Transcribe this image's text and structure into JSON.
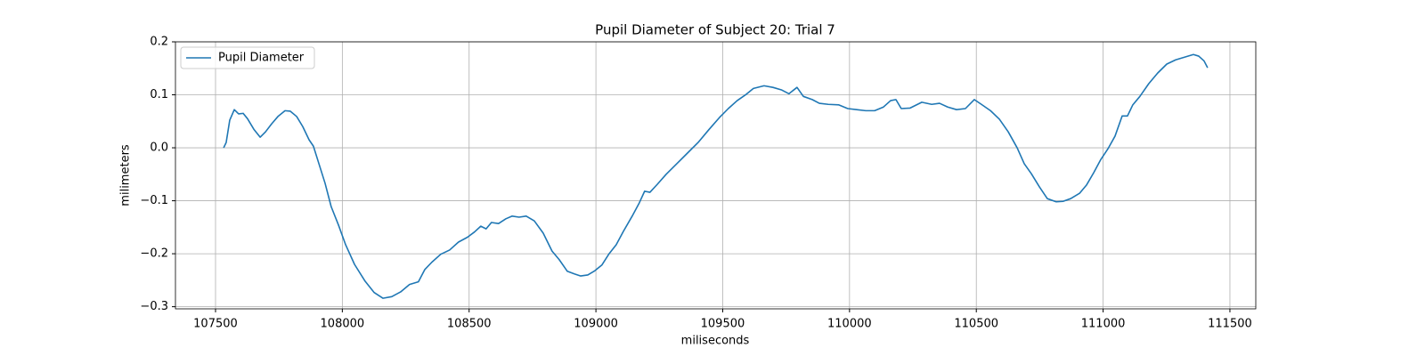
{
  "chart_data": {
    "type": "line",
    "title": "Pupil Diameter of Subject 20: Trial 7",
    "xlabel": "miliseconds",
    "ylabel": "milimeters",
    "x": [
      107532,
      107542,
      107556,
      107574,
      107591,
      107609,
      107626,
      107651,
      107676,
      107697,
      107721,
      107746,
      107774,
      107795,
      107820,
      107844,
      107869,
      107886,
      107907,
      107932,
      107956,
      107985,
      108013,
      108048,
      108090,
      108125,
      108160,
      108195,
      108230,
      108265,
      108300,
      108325,
      108353,
      108388,
      108423,
      108458,
      108493,
      108521,
      108546,
      108567,
      108588,
      108616,
      108645,
      108669,
      108697,
      108725,
      108757,
      108792,
      108827,
      108855,
      108887,
      108915,
      108940,
      108968,
      108996,
      109024,
      109052,
      109080,
      109108,
      109143,
      109171,
      109192,
      109213,
      109242,
      109277,
      109319,
      109361,
      109403,
      109445,
      109487,
      109522,
      109557,
      109593,
      109621,
      109663,
      109698,
      109733,
      109761,
      109793,
      109818,
      109853,
      109881,
      109916,
      109958,
      109993,
      110028,
      110064,
      110099,
      110134,
      110162,
      110183,
      110204,
      110239,
      110285,
      110324,
      110355,
      110387,
      110422,
      110457,
      110492,
      110520,
      110556,
      110591,
      110626,
      110661,
      110689,
      110717,
      110749,
      110780,
      110815,
      110843,
      110872,
      110907,
      110935,
      110963,
      110991,
      111019,
      111047,
      111075,
      111096,
      111117,
      111145,
      111180,
      111215,
      111251,
      111286,
      111321,
      111356,
      111377,
      111398,
      111412
    ],
    "series": [
      {
        "name": "Pupil Diameter",
        "color": "#1f77b4",
        "values": [
          0.0,
          0.01,
          0.052,
          0.072,
          0.064,
          0.065,
          0.055,
          0.035,
          0.02,
          0.03,
          0.045,
          0.059,
          0.07,
          0.069,
          0.059,
          0.04,
          0.015,
          0.003,
          -0.029,
          -0.067,
          -0.111,
          -0.146,
          -0.183,
          -0.22,
          -0.252,
          -0.273,
          -0.284,
          -0.281,
          -0.272,
          -0.258,
          -0.253,
          -0.23,
          -0.216,
          -0.201,
          -0.193,
          -0.178,
          -0.169,
          -0.159,
          -0.148,
          -0.153,
          -0.141,
          -0.143,
          -0.134,
          -0.129,
          -0.131,
          -0.129,
          -0.138,
          -0.161,
          -0.195,
          -0.211,
          -0.233,
          -0.238,
          -0.242,
          -0.24,
          -0.232,
          -0.221,
          -0.2,
          -0.183,
          -0.158,
          -0.129,
          -0.104,
          -0.082,
          -0.084,
          -0.069,
          -0.05,
          -0.03,
          -0.01,
          0.01,
          0.034,
          0.057,
          0.074,
          0.089,
          0.101,
          0.112,
          0.117,
          0.114,
          0.109,
          0.102,
          0.114,
          0.097,
          0.091,
          0.084,
          0.082,
          0.081,
          0.074,
          0.072,
          0.07,
          0.07,
          0.077,
          0.089,
          0.091,
          0.074,
          0.075,
          0.086,
          0.082,
          0.084,
          0.077,
          0.072,
          0.074,
          0.091,
          0.082,
          0.07,
          0.054,
          0.03,
          0.0,
          -0.03,
          -0.049,
          -0.074,
          -0.096,
          -0.102,
          -0.101,
          -0.096,
          -0.086,
          -0.07,
          -0.047,
          -0.022,
          -0.002,
          0.022,
          0.06,
          0.06,
          0.081,
          0.097,
          0.121,
          0.141,
          0.158,
          0.166,
          0.171,
          0.176,
          0.173,
          0.164,
          0.151
        ]
      }
    ],
    "xlim": [
      107342,
      111602
    ],
    "xticks": [
      107500,
      108000,
      108500,
      109000,
      109500,
      110000,
      110500,
      111000,
      111500
    ],
    "ylim": [
      -0.304,
      0.2
    ],
    "yticks": [
      {
        "value": -0.3,
        "label": "−0.3"
      },
      {
        "value": -0.2,
        "label": "−0.2"
      },
      {
        "value": -0.1,
        "label": "−0.1"
      },
      {
        "value": 0,
        "label": "0.0"
      },
      0.1,
      0.2
    ],
    "grid": true,
    "legend": "upper left"
  }
}
